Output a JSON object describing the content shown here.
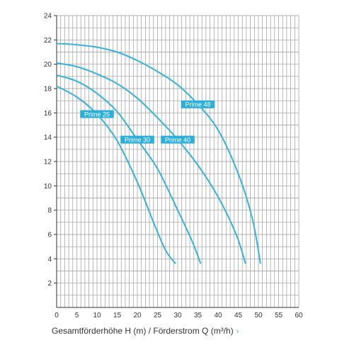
{
  "chart_data": {
    "type": "line",
    "title": "",
    "xlabel": "Gesamtförderhöhe H (m) / Förderstrom Q (m³/h)",
    "ylabel": "",
    "xlim": [
      0,
      60
    ],
    "ylim": [
      0,
      24
    ],
    "x_ticks": [
      "0",
      "5",
      "10",
      "15",
      "20",
      "25",
      "30",
      "35",
      "40",
      "45",
      "50",
      "55",
      "60"
    ],
    "y_ticks": [
      "2",
      "4",
      "6",
      "8",
      "10",
      "12",
      "14",
      "16",
      "18",
      "20",
      "22",
      "24"
    ],
    "grid": true,
    "series": [
      {
        "name": "Prime 25",
        "x": [
          0,
          5,
          10,
          15,
          20,
          24,
          27,
          29.5
        ],
        "y": [
          18.2,
          17.3,
          15.9,
          13.7,
          10.3,
          7.0,
          4.7,
          3.6
        ]
      },
      {
        "name": "Prime 30",
        "x": [
          0,
          5,
          10,
          15,
          20,
          25,
          30,
          33.5,
          35.7
        ],
        "y": [
          19.1,
          18.6,
          17.6,
          16.1,
          13.8,
          11.4,
          8.0,
          5.5,
          3.6
        ]
      },
      {
        "name": "Prime 40",
        "x": [
          0,
          5,
          10,
          15,
          20,
          25,
          30,
          35,
          40,
          44.5,
          46.8
        ],
        "y": [
          20.1,
          19.8,
          19.2,
          18.4,
          17.2,
          15.6,
          13.8,
          11.7,
          9.1,
          6.0,
          3.6
        ]
      },
      {
        "name": "Prime 48",
        "x": [
          0,
          5,
          10,
          15,
          20,
          25,
          30,
          35,
          40,
          45,
          48.5,
          50.5
        ],
        "y": [
          21.7,
          21.6,
          21.4,
          21.0,
          20.3,
          19.4,
          18.3,
          16.7,
          14.6,
          11.0,
          7.3,
          3.6
        ]
      }
    ],
    "label_color": "#2aaedc",
    "line_color": "#35b3dc",
    "link_color": "#35b3dc"
  },
  "footer": {
    "chevron": "›"
  }
}
